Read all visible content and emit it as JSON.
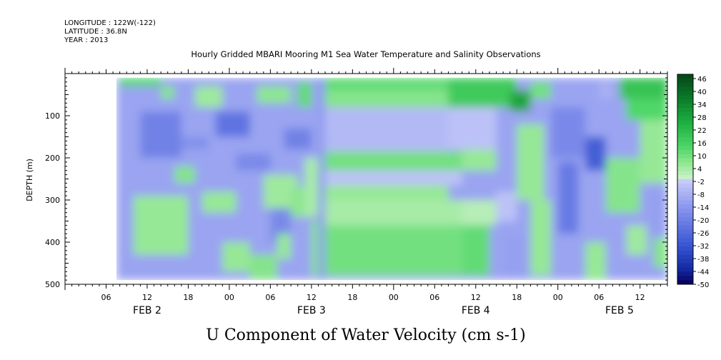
{
  "header": {
    "longitude": "LONGITUDE : 122W(-122)",
    "latitude": "LATITUDE : 36.8N",
    "year": "YEAR : 2013"
  },
  "chart_data": {
    "type": "heatmap",
    "title": "Hourly Gridded MBARI Mooring M1 Sea Water Temperature and Salinity Observations",
    "variable_title": "U Component of Water Velocity (cm s-1)",
    "ylabel": "DEPTH (m)",
    "y_axis": {
      "ylim": [
        500,
        0
      ],
      "inverted": true,
      "tick_values": [
        100,
        200,
        300,
        400,
        500
      ],
      "tick_labels": [
        "100",
        "200",
        "300",
        "400",
        "500"
      ]
    },
    "x_axis": {
      "range_hours": [
        0,
        88
      ],
      "tick_labels": [
        "06",
        "12",
        "18",
        "00",
        "06",
        "12",
        "18",
        "00",
        "06",
        "12",
        "18",
        "00",
        "06",
        "12"
      ],
      "tick_hours": [
        6,
        12,
        18,
        24,
        30,
        36,
        42,
        48,
        54,
        60,
        66,
        72,
        78,
        84
      ],
      "date_labels": [
        "FEB  2",
        "FEB  3",
        "FEB  4",
        "FEB  5"
      ],
      "date_hours": [
        12,
        36,
        60,
        81
      ]
    },
    "data_extent": {
      "time_hours": [
        7.5,
        88
      ],
      "depth_m": [
        10,
        490
      ]
    },
    "colorbar": {
      "levels": [
        48,
        46,
        44,
        42,
        40,
        38,
        36,
        34,
        32,
        30,
        28,
        26,
        24,
        22,
        20,
        18,
        16,
        14,
        12,
        10,
        8,
        6,
        4,
        2,
        0,
        -2,
        -4,
        -6,
        -8,
        -10,
        -12,
        -14,
        -16,
        -18,
        -20,
        -22,
        -24,
        -26,
        -28,
        -30,
        -32,
        -34,
        -36,
        -38,
        -40,
        -42,
        -44,
        -46,
        -48,
        -50
      ],
      "labels": [
        "46",
        "40",
        "34",
        "28",
        "22",
        "16",
        "10",
        "4",
        "-2",
        "-8",
        "-14",
        "-20",
        "-26",
        "-32",
        "-38",
        "-44",
        "-50"
      ],
      "label_values": [
        46,
        40,
        34,
        28,
        22,
        16,
        10,
        4,
        -2,
        -8,
        -14,
        -20,
        -26,
        -32,
        -38,
        -44,
        -50
      ]
    },
    "fields": [
      {
        "t0": 7.5,
        "t1": 88,
        "d0": 10,
        "d1": 490,
        "value": -11
      },
      {
        "t0": 8,
        "t1": 14,
        "d0": 10,
        "d1": 30,
        "value": 14
      },
      {
        "t0": 10,
        "t1": 18,
        "d0": 290,
        "d1": 430,
        "value": 6
      },
      {
        "t0": 11,
        "t1": 17,
        "d0": 90,
        "d1": 200,
        "value": -20
      },
      {
        "t0": 14,
        "t1": 16,
        "d0": 30,
        "d1": 60,
        "value": 8
      },
      {
        "t0": 16,
        "t1": 19,
        "d0": 220,
        "d1": 260,
        "value": 8
      },
      {
        "t0": 17,
        "t1": 21,
        "d0": 150,
        "d1": 180,
        "value": -16
      },
      {
        "t0": 19,
        "t1": 23,
        "d0": 30,
        "d1": 80,
        "value": 5
      },
      {
        "t0": 20,
        "t1": 25,
        "d0": 280,
        "d1": 330,
        "value": 6
      },
      {
        "t0": 22,
        "t1": 27,
        "d0": 90,
        "d1": 150,
        "value": -24
      },
      {
        "t0": 23,
        "t1": 27,
        "d0": 400,
        "d1": 470,
        "value": 6
      },
      {
        "t0": 25,
        "t1": 30,
        "d0": 190,
        "d1": 230,
        "value": -18
      },
      {
        "t0": 27,
        "t1": 31,
        "d0": 430,
        "d1": 490,
        "value": 8
      },
      {
        "t0": 28,
        "t1": 33,
        "d0": 30,
        "d1": 70,
        "value": 7
      },
      {
        "t0": 29,
        "t1": 34,
        "d0": 240,
        "d1": 320,
        "value": 5
      },
      {
        "t0": 30,
        "t1": 33,
        "d0": 320,
        "d1": 400,
        "value": -18
      },
      {
        "t0": 31,
        "t1": 33,
        "d0": 380,
        "d1": 440,
        "value": 6
      },
      {
        "t0": 32,
        "t1": 36,
        "d0": 130,
        "d1": 180,
        "value": -20
      },
      {
        "t0": 33,
        "t1": 35,
        "d0": 270,
        "d1": 340,
        "value": 7
      },
      {
        "t0": 34,
        "t1": 36,
        "d0": 20,
        "d1": 80,
        "value": 12
      },
      {
        "t0": 35,
        "t1": 37,
        "d0": 200,
        "d1": 340,
        "value": 4
      },
      {
        "t0": 36,
        "t1": 37,
        "d0": 350,
        "d1": 480,
        "value": 8
      },
      {
        "t0": 37,
        "t1": 38,
        "d0": 10,
        "d1": 490,
        "value": -13
      },
      {
        "t0": 38,
        "t1": 56,
        "d0": 10,
        "d1": 40,
        "value": 12
      },
      {
        "t0": 38,
        "t1": 56,
        "d0": 40,
        "d1": 80,
        "value": 8
      },
      {
        "t0": 38,
        "t1": 56,
        "d0": 80,
        "d1": 185,
        "value": -6
      },
      {
        "t0": 38,
        "t1": 58,
        "d0": 185,
        "d1": 230,
        "value": 10
      },
      {
        "t0": 38,
        "t1": 58,
        "d0": 230,
        "d1": 265,
        "value": -4
      },
      {
        "t0": 38,
        "t1": 56,
        "d0": 265,
        "d1": 300,
        "value": 6
      },
      {
        "t0": 38,
        "t1": 58,
        "d0": 300,
        "d1": 360,
        "value": 4
      },
      {
        "t0": 38,
        "t1": 58,
        "d0": 360,
        "d1": 480,
        "value": 10
      },
      {
        "t0": 56,
        "t1": 66,
        "d0": 10,
        "d1": 80,
        "value": 18
      },
      {
        "t0": 56,
        "t1": 63,
        "d0": 80,
        "d1": 180,
        "value": -4
      },
      {
        "t0": 58,
        "t1": 63,
        "d0": 180,
        "d1": 230,
        "value": 6
      },
      {
        "t0": 58,
        "t1": 63,
        "d0": 300,
        "d1": 360,
        "value": 2
      },
      {
        "t0": 58,
        "t1": 62,
        "d0": 360,
        "d1": 480,
        "value": 12
      },
      {
        "t0": 63,
        "t1": 66,
        "d0": 280,
        "d1": 350,
        "value": -4
      },
      {
        "t0": 64,
        "t1": 67,
        "d0": 380,
        "d1": 480,
        "value": -12
      },
      {
        "t0": 65,
        "t1": 68,
        "d0": 40,
        "d1": 90,
        "value": 28
      },
      {
        "t0": 66,
        "t1": 70,
        "d0": 120,
        "d1": 300,
        "value": 6
      },
      {
        "t0": 68,
        "t1": 71,
        "d0": 20,
        "d1": 60,
        "value": 10
      },
      {
        "t0": 68,
        "t1": 71,
        "d0": 300,
        "d1": 480,
        "value": 6
      },
      {
        "t0": 71,
        "t1": 76,
        "d0": 80,
        "d1": 200,
        "value": -18
      },
      {
        "t0": 72,
        "t1": 75,
        "d0": 210,
        "d1": 380,
        "value": -22
      },
      {
        "t0": 76,
        "t1": 79,
        "d0": 150,
        "d1": 230,
        "value": -30
      },
      {
        "t0": 76,
        "t1": 79,
        "d0": 400,
        "d1": 490,
        "value": 6
      },
      {
        "t0": 78,
        "t1": 80,
        "d0": 20,
        "d1": 60,
        "value": -8
      },
      {
        "t0": 79,
        "t1": 84,
        "d0": 200,
        "d1": 330,
        "value": 8
      },
      {
        "t0": 81,
        "t1": 88,
        "d0": 10,
        "d1": 60,
        "value": 20
      },
      {
        "t0": 82,
        "t1": 88,
        "d0": 60,
        "d1": 110,
        "value": 14
      },
      {
        "t0": 82,
        "t1": 85,
        "d0": 360,
        "d1": 430,
        "value": 5
      },
      {
        "t0": 84,
        "t1": 88,
        "d0": 110,
        "d1": 260,
        "value": 6
      },
      {
        "t0": 85,
        "t1": 88,
        "d0": 280,
        "d1": 380,
        "value": -12
      },
      {
        "t0": 86,
        "t1": 88,
        "d0": 390,
        "d1": 460,
        "value": 8
      }
    ]
  }
}
